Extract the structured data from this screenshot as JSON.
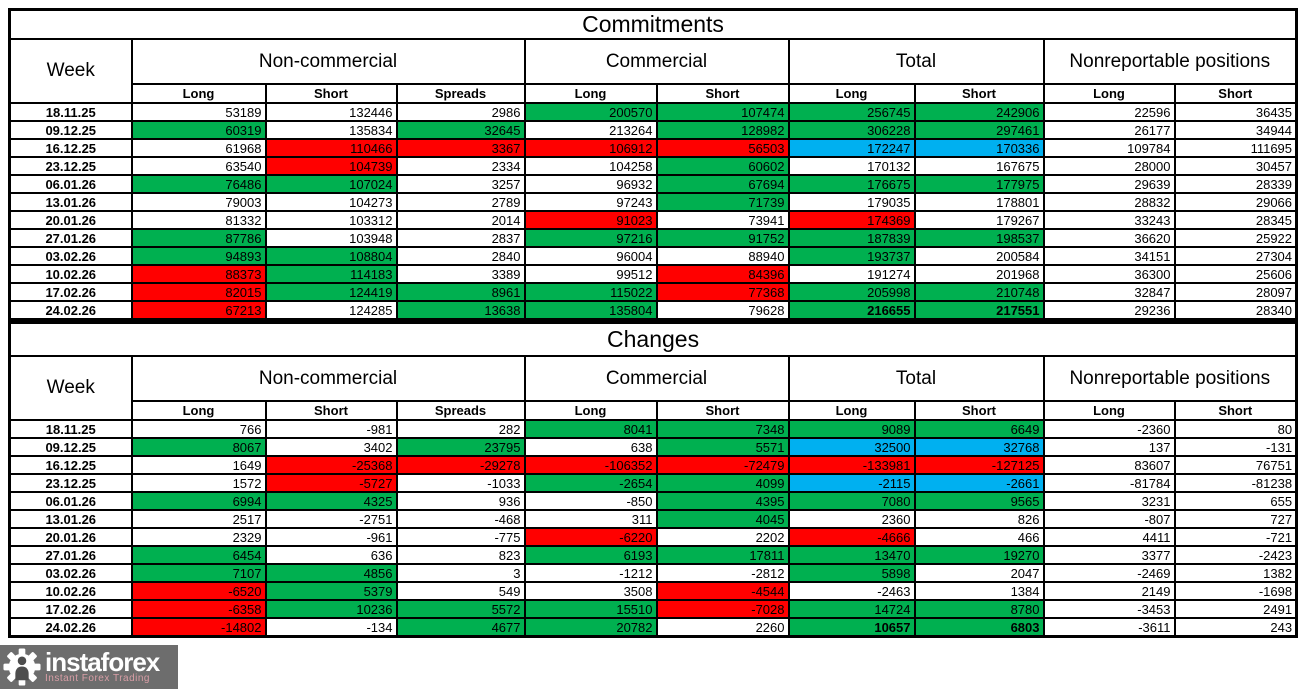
{
  "titles": {
    "commitments": "Commitments",
    "changes": "Changes"
  },
  "header": {
    "week": "Week",
    "groups": [
      {
        "label": "Non-commercial",
        "cols": [
          "Long",
          "Short",
          "Spreads"
        ]
      },
      {
        "label": "Commercial",
        "cols": [
          "Long",
          "Short"
        ]
      },
      {
        "label": "Total",
        "cols": [
          "Long",
          "Short"
        ]
      },
      {
        "label": "Nonreportable positions",
        "cols": [
          "Long",
          "Short"
        ]
      }
    ]
  },
  "colors": {
    "green": "#00B050",
    "red": "#FF0000",
    "blue": "#00B0F0",
    "white": "#FFFFFF"
  },
  "commitments": {
    "rows": [
      {
        "week": "18.11.25",
        "cells": [
          [
            "53189",
            "w"
          ],
          [
            "132446",
            "w"
          ],
          [
            "2986",
            "w"
          ],
          [
            "200570",
            "g"
          ],
          [
            "107474",
            "g"
          ],
          [
            "256745",
            "g"
          ],
          [
            "242906",
            "g"
          ],
          [
            "22596",
            "w"
          ],
          [
            "36435",
            "w"
          ]
        ]
      },
      {
        "week": "09.12.25",
        "cells": [
          [
            "60319",
            "g"
          ],
          [
            "135834",
            "w"
          ],
          [
            "32645",
            "g"
          ],
          [
            "213264",
            "w"
          ],
          [
            "128982",
            "g"
          ],
          [
            "306228",
            "g"
          ],
          [
            "297461",
            "g"
          ],
          [
            "26177",
            "w"
          ],
          [
            "34944",
            "w"
          ]
        ]
      },
      {
        "week": "16.12.25",
        "cells": [
          [
            "61968",
            "w"
          ],
          [
            "110466",
            "r"
          ],
          [
            "3367",
            "r"
          ],
          [
            "106912",
            "r"
          ],
          [
            "56503",
            "r"
          ],
          [
            "172247",
            "b"
          ],
          [
            "170336",
            "b"
          ],
          [
            "109784",
            "w"
          ],
          [
            "111695",
            "w"
          ]
        ]
      },
      {
        "week": "23.12.25",
        "cells": [
          [
            "63540",
            "w"
          ],
          [
            "104739",
            "r"
          ],
          [
            "2334",
            "w"
          ],
          [
            "104258",
            "w"
          ],
          [
            "60602",
            "g"
          ],
          [
            "170132",
            "w"
          ],
          [
            "167675",
            "w"
          ],
          [
            "28000",
            "w"
          ],
          [
            "30457",
            "w"
          ]
        ]
      },
      {
        "week": "06.01.26",
        "cells": [
          [
            "76486",
            "g"
          ],
          [
            "107024",
            "g"
          ],
          [
            "3257",
            "w"
          ],
          [
            "96932",
            "w"
          ],
          [
            "67694",
            "g"
          ],
          [
            "176675",
            "g"
          ],
          [
            "177975",
            "g"
          ],
          [
            "29639",
            "w"
          ],
          [
            "28339",
            "w"
          ]
        ]
      },
      {
        "week": "13.01.26",
        "cells": [
          [
            "79003",
            "w"
          ],
          [
            "104273",
            "w"
          ],
          [
            "2789",
            "w"
          ],
          [
            "97243",
            "w"
          ],
          [
            "71739",
            "g"
          ],
          [
            "179035",
            "w"
          ],
          [
            "178801",
            "w"
          ],
          [
            "28832",
            "w"
          ],
          [
            "29066",
            "w"
          ]
        ]
      },
      {
        "week": "20.01.26",
        "cells": [
          [
            "81332",
            "w"
          ],
          [
            "103312",
            "w"
          ],
          [
            "2014",
            "w"
          ],
          [
            "91023",
            "r"
          ],
          [
            "73941",
            "w"
          ],
          [
            "174369",
            "r"
          ],
          [
            "179267",
            "w"
          ],
          [
            "33243",
            "w"
          ],
          [
            "28345",
            "w"
          ]
        ]
      },
      {
        "week": "27.01.26",
        "cells": [
          [
            "87786",
            "g"
          ],
          [
            "103948",
            "w"
          ],
          [
            "2837",
            "w"
          ],
          [
            "97216",
            "g"
          ],
          [
            "91752",
            "g"
          ],
          [
            "187839",
            "g"
          ],
          [
            "198537",
            "g"
          ],
          [
            "36620",
            "w"
          ],
          [
            "25922",
            "w"
          ]
        ]
      },
      {
        "week": "03.02.26",
        "cells": [
          [
            "94893",
            "g"
          ],
          [
            "108804",
            "g"
          ],
          [
            "2840",
            "w"
          ],
          [
            "96004",
            "w"
          ],
          [
            "88940",
            "w"
          ],
          [
            "193737",
            "g"
          ],
          [
            "200584",
            "w"
          ],
          [
            "34151",
            "w"
          ],
          [
            "27304",
            "w"
          ]
        ]
      },
      {
        "week": "10.02.26",
        "cells": [
          [
            "88373",
            "r"
          ],
          [
            "114183",
            "g"
          ],
          [
            "3389",
            "w"
          ],
          [
            "99512",
            "w"
          ],
          [
            "84396",
            "r"
          ],
          [
            "191274",
            "w"
          ],
          [
            "201968",
            "w"
          ],
          [
            "36300",
            "w"
          ],
          [
            "25606",
            "w"
          ]
        ]
      },
      {
        "week": "17.02.26",
        "cells": [
          [
            "82015",
            "r"
          ],
          [
            "124419",
            "g"
          ],
          [
            "8961",
            "g"
          ],
          [
            "115022",
            "g"
          ],
          [
            "77368",
            "r"
          ],
          [
            "205998",
            "g"
          ],
          [
            "210748",
            "g"
          ],
          [
            "32847",
            "w"
          ],
          [
            "28097",
            "w"
          ]
        ]
      },
      {
        "week": "24.02.26",
        "cells": [
          [
            "67213",
            "r"
          ],
          [
            "124285",
            "w"
          ],
          [
            "13638",
            "g"
          ],
          [
            "135804",
            "g"
          ],
          [
            "79628",
            "w"
          ],
          [
            "216655",
            "g",
            1
          ],
          [
            "217551",
            "g",
            1
          ],
          [
            "29236",
            "w"
          ],
          [
            "28340",
            "w"
          ]
        ]
      }
    ]
  },
  "changes": {
    "rows": [
      {
        "week": "18.11.25",
        "cells": [
          [
            "766",
            "w"
          ],
          [
            "-981",
            "w"
          ],
          [
            "282",
            "w"
          ],
          [
            "8041",
            "g"
          ],
          [
            "7348",
            "g"
          ],
          [
            "9089",
            "g"
          ],
          [
            "6649",
            "g"
          ],
          [
            "-2360",
            "w"
          ],
          [
            "80",
            "w"
          ]
        ]
      },
      {
        "week": "09.12.25",
        "cells": [
          [
            "8067",
            "g"
          ],
          [
            "3402",
            "w"
          ],
          [
            "23795",
            "g"
          ],
          [
            "638",
            "w"
          ],
          [
            "5571",
            "g"
          ],
          [
            "32500",
            "b"
          ],
          [
            "32768",
            "b"
          ],
          [
            "137",
            "w"
          ],
          [
            "-131",
            "w"
          ]
        ]
      },
      {
        "week": "16.12.25",
        "cells": [
          [
            "1649",
            "w"
          ],
          [
            "-25368",
            "r"
          ],
          [
            "-29278",
            "r"
          ],
          [
            "-106352",
            "r"
          ],
          [
            "-72479",
            "r"
          ],
          [
            "-133981",
            "r"
          ],
          [
            "-127125",
            "r"
          ],
          [
            "83607",
            "w"
          ],
          [
            "76751",
            "w"
          ]
        ]
      },
      {
        "week": "23.12.25",
        "cells": [
          [
            "1572",
            "w"
          ],
          [
            "-5727",
            "r"
          ],
          [
            "-1033",
            "w"
          ],
          [
            "-2654",
            "g"
          ],
          [
            "4099",
            "g"
          ],
          [
            "-2115",
            "b"
          ],
          [
            "-2661",
            "b"
          ],
          [
            "-81784",
            "w"
          ],
          [
            "-81238",
            "w"
          ]
        ]
      },
      {
        "week": "06.01.26",
        "cells": [
          [
            "6994",
            "g"
          ],
          [
            "4325",
            "g"
          ],
          [
            "936",
            "w"
          ],
          [
            "-850",
            "w"
          ],
          [
            "4395",
            "g"
          ],
          [
            "7080",
            "g"
          ],
          [
            "9565",
            "g"
          ],
          [
            "3231",
            "w"
          ],
          [
            "655",
            "w"
          ]
        ]
      },
      {
        "week": "13.01.26",
        "cells": [
          [
            "2517",
            "w"
          ],
          [
            "-2751",
            "w"
          ],
          [
            "-468",
            "w"
          ],
          [
            "311",
            "w"
          ],
          [
            "4045",
            "g"
          ],
          [
            "2360",
            "w"
          ],
          [
            "826",
            "w"
          ],
          [
            "-807",
            "w"
          ],
          [
            "727",
            "w"
          ]
        ]
      },
      {
        "week": "20.01.26",
        "cells": [
          [
            "2329",
            "w"
          ],
          [
            "-961",
            "w"
          ],
          [
            "-775",
            "w"
          ],
          [
            "-6220",
            "r"
          ],
          [
            "2202",
            "w"
          ],
          [
            "-4666",
            "r"
          ],
          [
            "466",
            "w"
          ],
          [
            "4411",
            "w"
          ],
          [
            "-721",
            "w"
          ]
        ]
      },
      {
        "week": "27.01.26",
        "cells": [
          [
            "6454",
            "g"
          ],
          [
            "636",
            "w"
          ],
          [
            "823",
            "w"
          ],
          [
            "6193",
            "g"
          ],
          [
            "17811",
            "g"
          ],
          [
            "13470",
            "g"
          ],
          [
            "19270",
            "g"
          ],
          [
            "3377",
            "w"
          ],
          [
            "-2423",
            "w"
          ]
        ]
      },
      {
        "week": "03.02.26",
        "cells": [
          [
            "7107",
            "g"
          ],
          [
            "4856",
            "g"
          ],
          [
            "3",
            "w"
          ],
          [
            "-1212",
            "w"
          ],
          [
            "-2812",
            "w"
          ],
          [
            "5898",
            "g"
          ],
          [
            "2047",
            "w"
          ],
          [
            "-2469",
            "w"
          ],
          [
            "1382",
            "w"
          ]
        ]
      },
      {
        "week": "10.02.26",
        "cells": [
          [
            "-6520",
            "r"
          ],
          [
            "5379",
            "g"
          ],
          [
            "549",
            "w"
          ],
          [
            "3508",
            "w"
          ],
          [
            "-4544",
            "r"
          ],
          [
            "-2463",
            "w"
          ],
          [
            "1384",
            "w"
          ],
          [
            "2149",
            "w"
          ],
          [
            "-1698",
            "w"
          ]
        ]
      },
      {
        "week": "17.02.26",
        "cells": [
          [
            "-6358",
            "r"
          ],
          [
            "10236",
            "g"
          ],
          [
            "5572",
            "g"
          ],
          [
            "15510",
            "g"
          ],
          [
            "-7028",
            "r"
          ],
          [
            "14724",
            "g"
          ],
          [
            "8780",
            "g"
          ],
          [
            "-3453",
            "w"
          ],
          [
            "2491",
            "w"
          ]
        ]
      },
      {
        "week": "24.02.26",
        "cells": [
          [
            "-14802",
            "r"
          ],
          [
            "-134",
            "w"
          ],
          [
            "4677",
            "g"
          ],
          [
            "20782",
            "g"
          ],
          [
            "2260",
            "w"
          ],
          [
            "10657",
            "g",
            1
          ],
          [
            "6803",
            "g",
            1
          ],
          [
            "-3611",
            "w"
          ],
          [
            "243",
            "w"
          ]
        ]
      }
    ]
  },
  "watermark": {
    "brand": "instaforex",
    "subtitle": "Instant Forex Trading"
  }
}
